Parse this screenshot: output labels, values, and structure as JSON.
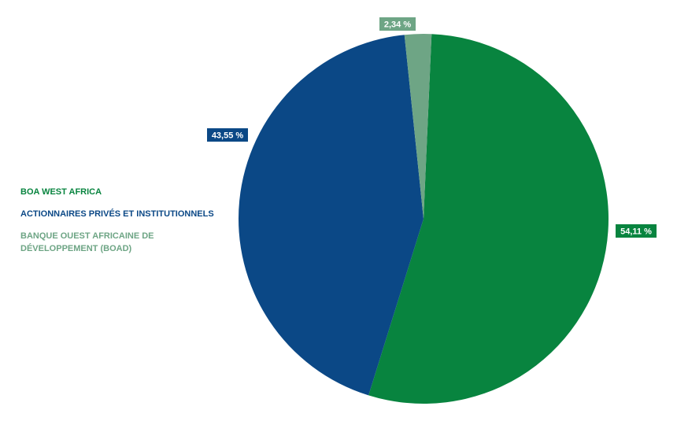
{
  "chart_data": {
    "type": "pie",
    "title": "",
    "slices": [
      {
        "label": "BOA WEST AFRICA",
        "value": 54.11,
        "value_label": "54,11 %",
        "color": "#08843f"
      },
      {
        "label": "ACTIONNAIRES PRIVÉS ET INSTITUTIONNELS",
        "value": 43.55,
        "value_label": "43,55 %",
        "color": "#0b4886"
      },
      {
        "label": "BANQUE OUEST AFRICAINE DE DÉVELOPPEMENT (BOAD)",
        "value": 2.34,
        "value_label": "2,34 %",
        "color": "#6ea585"
      }
    ],
    "legend_position": "left"
  }
}
